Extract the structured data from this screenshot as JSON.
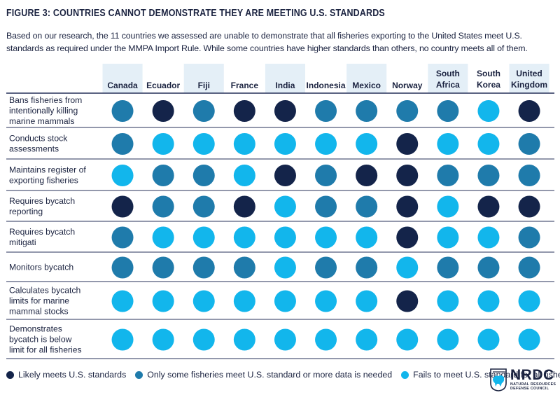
{
  "header": {
    "title": "FIGURE 3: COUNTRIES CANNOT DEMONSTRATE THEY ARE MEETING U.S. STANDARDS",
    "subtitle": "Based on our research, the 11 countries we assessed are unable to demonstrate that all fisheries exporting to the United States meet U.S. standards as required under the MMPA Import Rule. While some countries have higher standards than others, no country meets all of them."
  },
  "colors": {
    "likely": "#14244a",
    "some": "#1f7bab",
    "fails": "#12b6ec",
    "header_band": "#e4eff7",
    "divider": "#27305a"
  },
  "chart_data": {
    "type": "table",
    "columns": [
      "Canada",
      "Ecuador",
      "Fiji",
      "France",
      "India",
      "Indonesia",
      "Mexico",
      "Norway",
      "South Africa",
      "South Korea",
      "United Kingdom"
    ],
    "column_lines": [
      [
        "Canada"
      ],
      [
        "Ecuador"
      ],
      [
        "Fiji"
      ],
      [
        "France"
      ],
      [
        "India"
      ],
      [
        "Indonesia"
      ],
      [
        "Mexico"
      ],
      [
        "Norway"
      ],
      [
        "South",
        "Africa"
      ],
      [
        "South",
        "Korea"
      ],
      [
        "United",
        "Kingdom"
      ]
    ],
    "rows": [
      {
        "label_lines": [
          "Bans fisheries from",
          "intentionally killing",
          "marine mammals"
        ],
        "values": [
          "some",
          "likely",
          "some",
          "likely",
          "likely",
          "some",
          "some",
          "some",
          "some",
          "fails",
          "likely"
        ]
      },
      {
        "label_lines": [
          "Conducts stock",
          "assessments"
        ],
        "values": [
          "some",
          "fails",
          "fails",
          "fails",
          "fails",
          "fails",
          "fails",
          "likely",
          "fails",
          "fails",
          "some"
        ]
      },
      {
        "label_lines": [
          "Maintains register of",
          "exporting fisheries"
        ],
        "values": [
          "fails",
          "some",
          "some",
          "fails",
          "likely",
          "some",
          "likely",
          "likely",
          "some",
          "some",
          "some"
        ]
      },
      {
        "label_lines": [
          "Requires bycatch",
          "reporting"
        ],
        "values": [
          "likely",
          "some",
          "some",
          "likely",
          "fails",
          "some",
          "some",
          "likely",
          "fails",
          "likely",
          "likely"
        ]
      },
      {
        "label_lines": [
          "Requires bycatch",
          "mitigati"
        ],
        "values": [
          "some",
          "fails",
          "fails",
          "fails",
          "fails",
          "fails",
          "fails",
          "likely",
          "fails",
          "fails",
          "some"
        ]
      },
      {
        "label_lines": [
          "Monitors bycatch"
        ],
        "values": [
          "some",
          "some",
          "some",
          "some",
          "fails",
          "some",
          "some",
          "fails",
          "some",
          "some",
          "some"
        ]
      },
      {
        "label_lines": [
          "Calculates bycatch",
          "limits for marine",
          "mammal stocks"
        ],
        "values": [
          "fails",
          "fails",
          "fails",
          "fails",
          "fails",
          "fails",
          "fails",
          "likely",
          "fails",
          "fails",
          "fails"
        ]
      },
      {
        "label_lines": [
          "Demonstrates",
          "bycatch is below",
          "limit for all fisheries"
        ],
        "values": [
          "fails",
          "fails",
          "fails",
          "fails",
          "fails",
          "fails",
          "fails",
          "fails",
          "fails",
          "fails",
          "fails"
        ]
      }
    ],
    "legend": [
      {
        "key": "likely",
        "label": "Likely meets U.S. standards"
      },
      {
        "key": "some",
        "label": "Only some fisheries meet U.S. standard or more data is needed"
      },
      {
        "key": "fails",
        "label": "Fails to meet U.S. standard for all fisheries"
      }
    ]
  },
  "logo": {
    "name": "NRDC",
    "line1": "NATURAL RESOURCES",
    "line2": "DEFENSE COUNCIL"
  }
}
